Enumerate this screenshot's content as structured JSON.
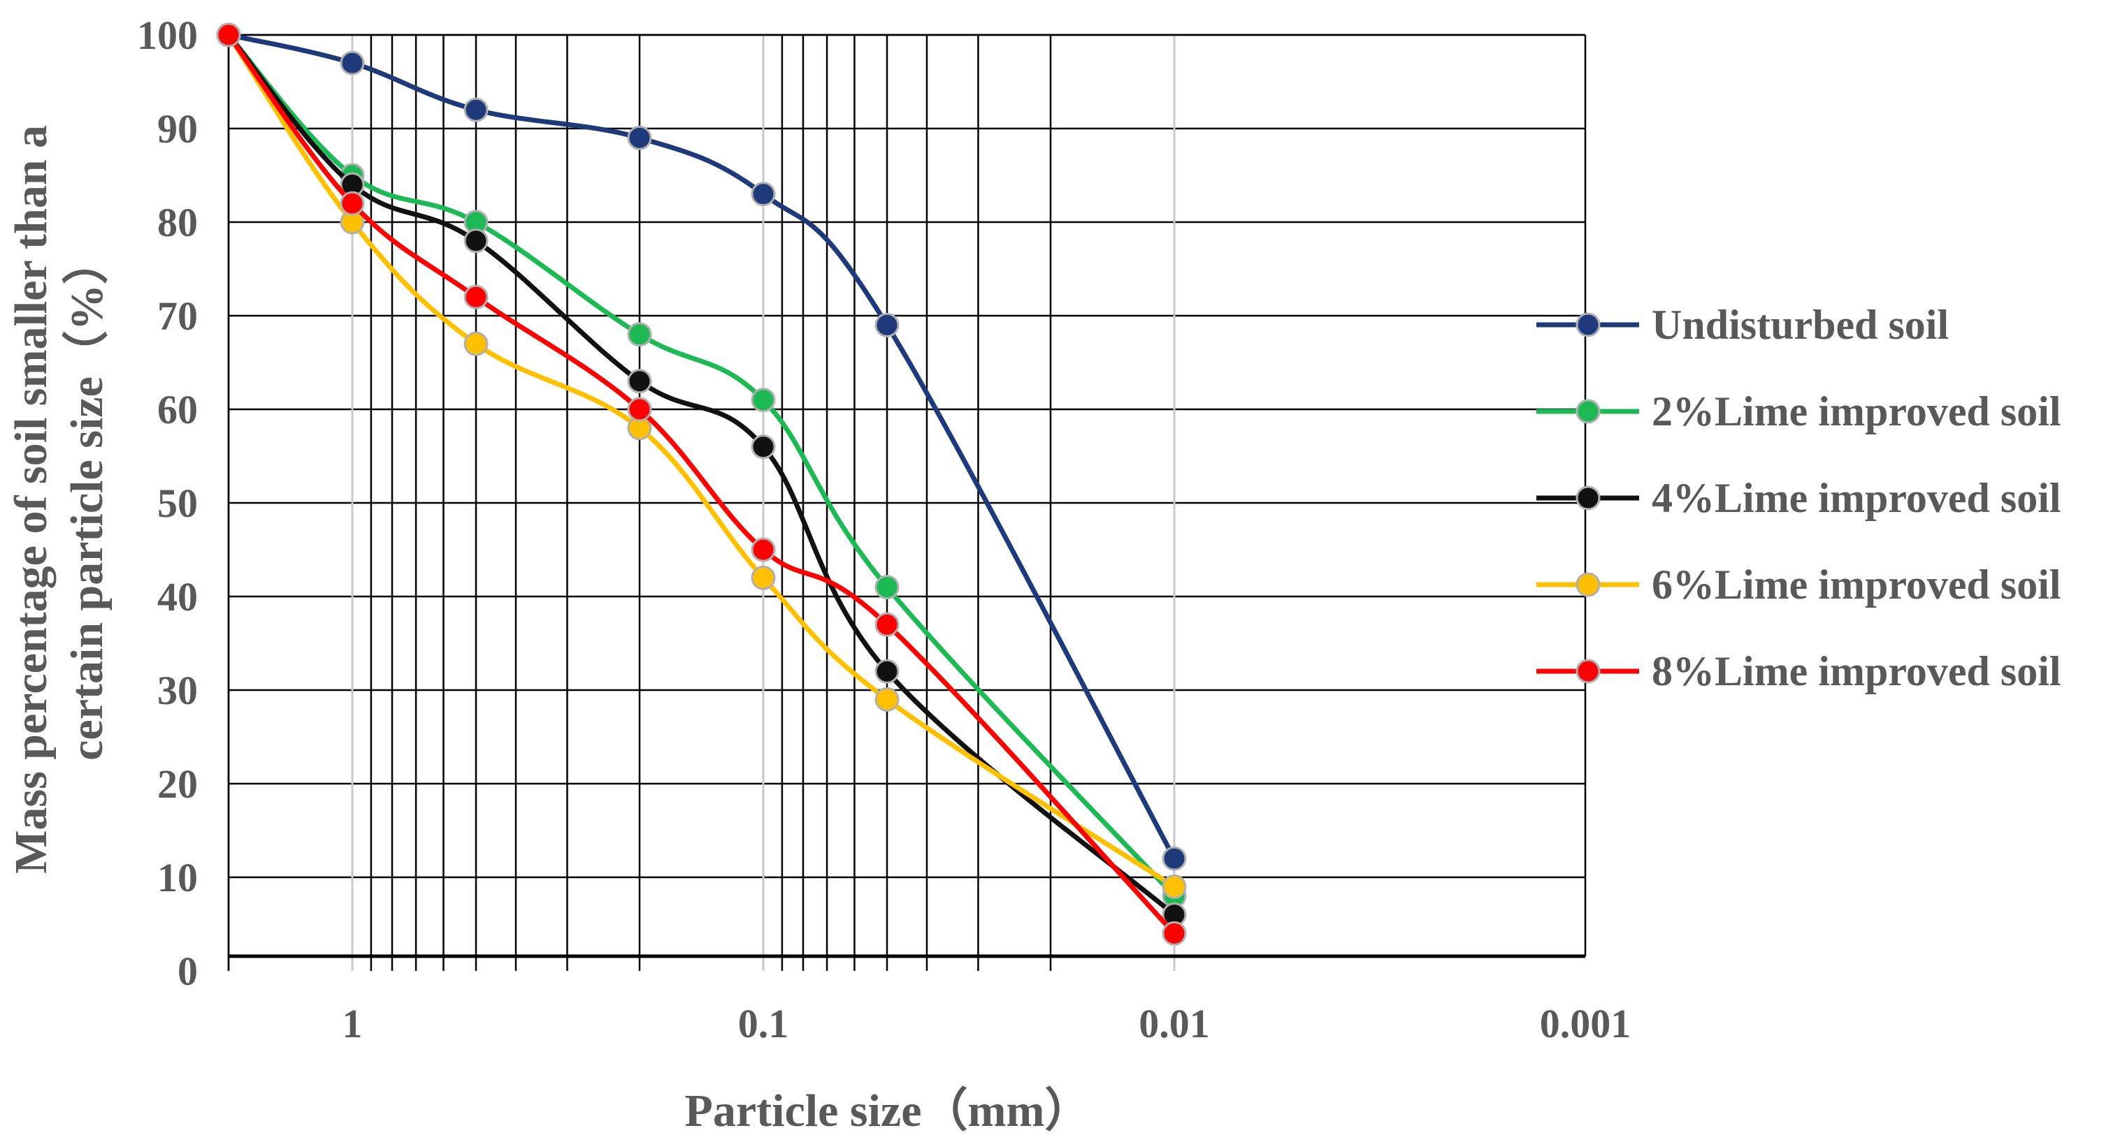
{
  "chart_data": {
    "type": "line",
    "title": "",
    "xlabel": "Particle size（mm）",
    "ylabel_lines": [
      "Mass percentage of soil smaller than a",
      "certain particle size（%）"
    ],
    "x_scale": "log",
    "x_reversed": true,
    "xlim": [
      2,
      0.001
    ],
    "ylim": [
      0,
      100
    ],
    "x_ticks": [
      {
        "value": 1,
        "label": "1"
      },
      {
        "value": 0.1,
        "label": "0.1"
      },
      {
        "value": 0.01,
        "label": "0.01"
      },
      {
        "value": 0.001,
        "label": "0.001"
      }
    ],
    "y_ticks": [
      {
        "value": 0,
        "label": "0"
      },
      {
        "value": 10,
        "label": "10"
      },
      {
        "value": 20,
        "label": "20"
      },
      {
        "value": 30,
        "label": "30"
      },
      {
        "value": 40,
        "label": "40"
      },
      {
        "value": 50,
        "label": "50"
      },
      {
        "value": 60,
        "label": "60"
      },
      {
        "value": 70,
        "label": "70"
      },
      {
        "value": 80,
        "label": "80"
      },
      {
        "value": 90,
        "label": "90"
      },
      {
        "value": 100,
        "label": "100"
      }
    ],
    "x": [
      2,
      1,
      0.5,
      0.2,
      0.1,
      0.05,
      0.01
    ],
    "series": [
      {
        "name": "Undisturbed soil",
        "color": "#1f3a7a",
        "values": [
          100,
          97,
          92,
          89,
          83,
          69,
          12
        ]
      },
      {
        "name": "2%Lime improved soil",
        "color": "#1db954",
        "values": [
          100,
          85,
          80,
          68,
          61,
          41,
          8
        ]
      },
      {
        "name": "4%Lime improved soil",
        "color": "#111111",
        "values": [
          100,
          84,
          78,
          63,
          56,
          32,
          6
        ]
      },
      {
        "name": "6%Lime improved soil",
        "color": "#ffc000",
        "values": [
          100,
          80,
          67,
          58,
          42,
          29,
          9
        ]
      },
      {
        "name": "8%Lime improved soil",
        "color": "#ff0000",
        "values": [
          100,
          82,
          72,
          60,
          45,
          37,
          4
        ]
      }
    ],
    "legend_position": "right",
    "grid": true
  }
}
